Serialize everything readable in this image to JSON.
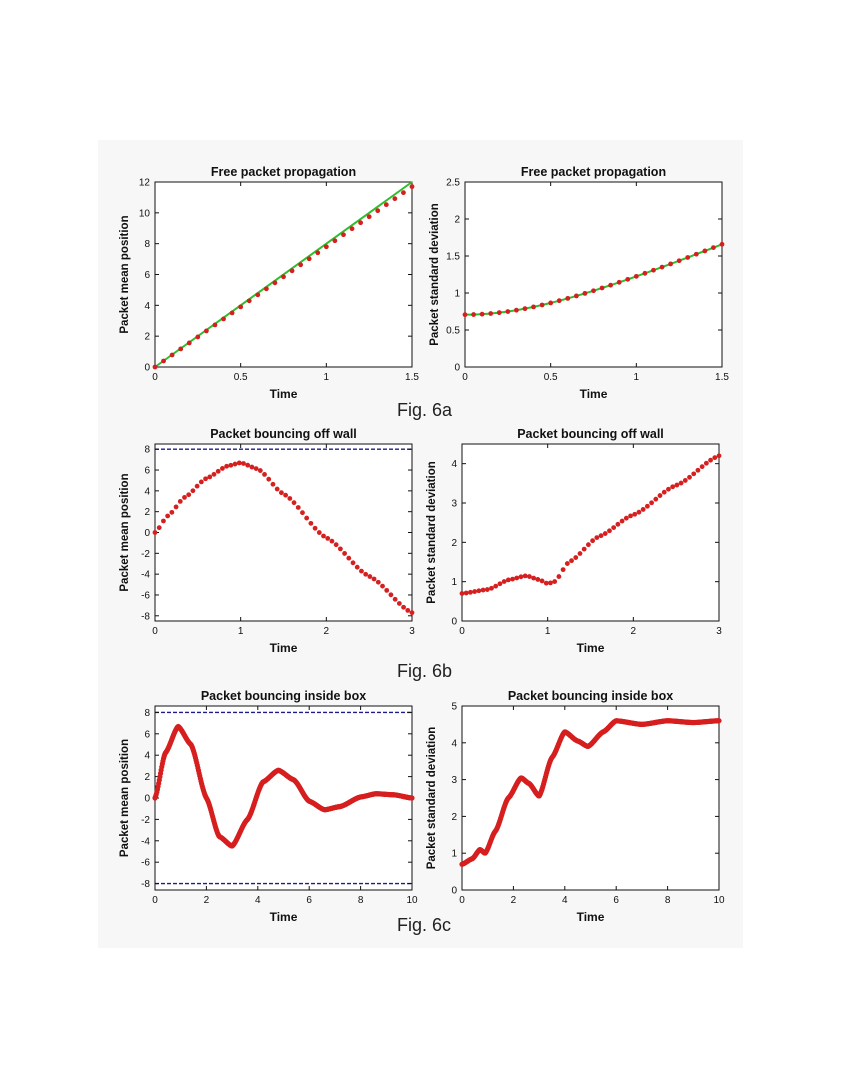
{
  "captions": [
    "Fig. 6a",
    "Fig. 6b",
    "Fig. 6c"
  ],
  "colors": {
    "data": "#d61f1f",
    "theory": "#2bbf2b",
    "wall": "#1c1c8a",
    "axis": "#111111"
  },
  "chart_data": [
    {
      "id": "a-left",
      "type": "scatter",
      "title": "Free packet propagation",
      "xlabel": "Time",
      "ylabel": "Packet mean position",
      "xlim": [
        0,
        1.5
      ],
      "ylim": [
        0,
        12
      ],
      "xticks": [
        0,
        0.5,
        1,
        1.5
      ],
      "xticklabels": [
        "0",
        "0.5",
        "1",
        "1.5"
      ],
      "yticks": [
        0,
        2,
        4,
        6,
        8,
        10,
        12
      ],
      "yticklabels": [
        "0",
        "2",
        "4",
        "6",
        "8",
        "10",
        "12"
      ],
      "theory_line": [
        [
          0,
          0
        ],
        [
          1.5,
          12
        ]
      ],
      "series": [
        {
          "name": "simulation",
          "fn": "linear",
          "slope": 7.8,
          "x_start": 0,
          "x_end": 1.5,
          "n": 31,
          "marker": "dot"
        }
      ]
    },
    {
      "id": "a-right",
      "type": "scatter",
      "title": "Free packet propagation",
      "xlabel": "Time",
      "ylabel": "Packet standard deviation",
      "xlim": [
        0,
        1.5
      ],
      "ylim": [
        0,
        2.5
      ],
      "xticks": [
        0,
        0.5,
        1,
        1.5
      ],
      "xticklabels": [
        "0",
        "0.5",
        "1",
        "1.5"
      ],
      "yticks": [
        0,
        0.5,
        1,
        1.5,
        2,
        2.5
      ],
      "yticklabels": [
        "0",
        "0.5",
        "1",
        "1.5",
        "2",
        "2.5"
      ],
      "theory_curve": {
        "fn": "spread",
        "sigma0": 0.707
      },
      "series": [
        {
          "name": "simulation",
          "fn": "spread",
          "sigma0": 0.707,
          "x_start": 0,
          "x_end": 1.5,
          "n": 31,
          "marker": "dot"
        }
      ]
    },
    {
      "id": "b-left",
      "type": "scatter",
      "title": "Packet bouncing off wall",
      "xlabel": "Time",
      "ylabel": "Packet mean position",
      "xlim": [
        0,
        3
      ],
      "ylim": [
        -8.5,
        8.5
      ],
      "xticks": [
        0,
        1,
        2,
        3
      ],
      "xticklabels": [
        "0",
        "1",
        "2",
        "3"
      ],
      "yticks": [
        -8,
        -6,
        -4,
        -2,
        0,
        2,
        4,
        6,
        8
      ],
      "yticklabels": [
        "-8",
        "-6",
        "-4",
        "-2",
        "0",
        "2",
        "4",
        "6",
        "8"
      ],
      "hlines": [
        8
      ],
      "series": [
        {
          "name": "simulation",
          "fn": "pts",
          "points": [
            [
              0,
              0
            ],
            [
              0.15,
              1.6
            ],
            [
              0.35,
              3.4
            ],
            [
              0.6,
              5.2
            ],
            [
              0.85,
              6.4
            ],
            [
              1.0,
              6.7
            ],
            [
              1.2,
              6.1
            ],
            [
              1.5,
              3.7
            ],
            [
              2.0,
              -0.5
            ],
            [
              2.5,
              -4.2
            ],
            [
              3.0,
              -7.7
            ]
          ],
          "n": 62,
          "marker": "dot"
        }
      ]
    },
    {
      "id": "b-right",
      "type": "scatter",
      "title": "Packet bouncing off wall",
      "xlabel": "Time",
      "ylabel": "Packet standard deviation",
      "xlim": [
        0,
        3
      ],
      "ylim": [
        0,
        4.5
      ],
      "xticks": [
        0,
        1,
        2,
        3
      ],
      "xticklabels": [
        "0",
        "1",
        "2",
        "3"
      ],
      "yticks": [
        0,
        1,
        2,
        3,
        4
      ],
      "yticklabels": [
        "0",
        "1",
        "2",
        "3",
        "4"
      ],
      "series": [
        {
          "name": "simulation",
          "fn": "pts",
          "points": [
            [
              0,
              0.7
            ],
            [
              0.3,
              0.8
            ],
            [
              0.55,
              1.05
            ],
            [
              0.75,
              1.15
            ],
            [
              0.9,
              1.05
            ],
            [
              1.0,
              0.95
            ],
            [
              1.08,
              1.0
            ],
            [
              1.25,
              1.5
            ],
            [
              1.6,
              2.15
            ],
            [
              2.0,
              2.7
            ],
            [
              2.5,
              3.45
            ],
            [
              3.0,
              4.2
            ]
          ],
          "n": 62,
          "marker": "dot"
        }
      ]
    },
    {
      "id": "c-left",
      "type": "line",
      "title": "Packet bouncing inside box",
      "xlabel": "Time",
      "ylabel": "Packet mean position",
      "xlim": [
        0,
        10
      ],
      "ylim": [
        -8.6,
        8.6
      ],
      "xticks": [
        0,
        2,
        4,
        6,
        8,
        10
      ],
      "xticklabels": [
        "0",
        "2",
        "4",
        "6",
        "8",
        "10"
      ],
      "yticks": [
        -8,
        -6,
        -4,
        -2,
        0,
        2,
        4,
        6,
        8
      ],
      "yticklabels": [
        "-8",
        "-6",
        "-4",
        "-2",
        "0",
        "2",
        "4",
        "6",
        "8"
      ],
      "hlines": [
        8,
        -8
      ],
      "series": [
        {
          "name": "simulation",
          "fn": "pts",
          "points": [
            [
              0,
              0
            ],
            [
              0.4,
              4.2
            ],
            [
              0.9,
              6.7
            ],
            [
              1.4,
              5.0
            ],
            [
              2.0,
              0.0
            ],
            [
              2.5,
              -3.6
            ],
            [
              3.0,
              -4.5
            ],
            [
              3.6,
              -2.0
            ],
            [
              4.2,
              1.5
            ],
            [
              4.8,
              2.6
            ],
            [
              5.4,
              1.7
            ],
            [
              6.0,
              -0.3
            ],
            [
              6.6,
              -1.1
            ],
            [
              7.2,
              -0.8
            ],
            [
              8.0,
              0.1
            ],
            [
              8.6,
              0.4
            ],
            [
              9.3,
              0.3
            ],
            [
              10.0,
              0.0
            ]
          ],
          "n": 420,
          "marker": "thick"
        }
      ]
    },
    {
      "id": "c-right",
      "type": "line",
      "title": "Packet bouncing inside box",
      "xlabel": "Time",
      "ylabel": "Packet standard deviation",
      "xlim": [
        0,
        10
      ],
      "ylim": [
        0,
        5
      ],
      "xticks": [
        0,
        2,
        4,
        6,
        8,
        10
      ],
      "xticklabels": [
        "0",
        "2",
        "4",
        "6",
        "8",
        "10"
      ],
      "yticks": [
        0,
        1,
        2,
        3,
        4,
        5
      ],
      "yticklabels": [
        "0",
        "1",
        "2",
        "3",
        "4",
        "5"
      ],
      "series": [
        {
          "name": "simulation",
          "fn": "pts",
          "points": [
            [
              0,
              0.7
            ],
            [
              0.4,
              0.85
            ],
            [
              0.7,
              1.1
            ],
            [
              0.9,
              1.0
            ],
            [
              1.3,
              1.6
            ],
            [
              1.8,
              2.5
            ],
            [
              2.3,
              3.05
            ],
            [
              2.6,
              2.9
            ],
            [
              3.0,
              2.55
            ],
            [
              3.5,
              3.6
            ],
            [
              4.0,
              4.3
            ],
            [
              4.5,
              4.05
            ],
            [
              4.9,
              3.9
            ],
            [
              5.5,
              4.3
            ],
            [
              6.0,
              4.6
            ],
            [
              7.0,
              4.5
            ],
            [
              8.0,
              4.6
            ],
            [
              9.0,
              4.55
            ],
            [
              10.0,
              4.6
            ]
          ],
          "n": 420,
          "marker": "thick"
        }
      ]
    }
  ]
}
